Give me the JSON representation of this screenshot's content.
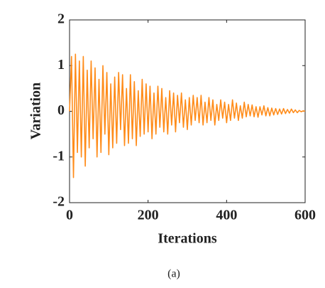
{
  "chart_data": {
    "type": "line",
    "xlabel": "Iterations",
    "ylabel": "Variation",
    "caption": "(a)",
    "color": "#ff8c1a",
    "x": [
      0,
      5,
      10,
      15,
      20,
      25,
      30,
      35,
      40,
      45,
      50,
      55,
      60,
      65,
      70,
      75,
      80,
      85,
      90,
      95,
      100,
      105,
      110,
      115,
      120,
      125,
      130,
      135,
      140,
      145,
      150,
      155,
      160,
      165,
      170,
      175,
      180,
      185,
      190,
      195,
      200,
      205,
      210,
      215,
      220,
      225,
      230,
      235,
      240,
      245,
      250,
      255,
      260,
      265,
      270,
      275,
      280,
      285,
      290,
      295,
      300,
      305,
      310,
      315,
      320,
      325,
      330,
      335,
      340,
      345,
      350,
      355,
      360,
      365,
      370,
      375,
      380,
      385,
      390,
      395,
      400,
      405,
      410,
      415,
      420,
      425,
      430,
      435,
      440,
      445,
      450,
      455,
      460,
      465,
      470,
      475,
      480,
      485,
      490,
      495,
      500,
      505,
      510,
      515,
      520,
      525,
      530,
      535,
      540,
      545,
      550,
      555,
      560,
      565,
      570,
      575,
      580,
      585,
      590,
      595,
      600
    ],
    "values": [
      0,
      1.2,
      -1.45,
      1.25,
      -0.9,
      1.1,
      -1.0,
      1.2,
      -1.2,
      0.9,
      -0.8,
      1.1,
      -0.6,
      0.95,
      -1.0,
      0.7,
      -0.9,
      1.0,
      -0.5,
      0.85,
      -0.95,
      0.6,
      -0.8,
      0.75,
      -0.7,
      0.85,
      -0.4,
      0.8,
      -0.75,
      0.5,
      -0.7,
      0.8,
      -0.6,
      0.65,
      -0.75,
      0.45,
      -0.55,
      0.7,
      -0.5,
      0.6,
      -0.45,
      0.55,
      -0.6,
      0.4,
      -0.5,
      0.55,
      -0.35,
      0.5,
      -0.45,
      0.3,
      -0.5,
      0.45,
      -0.3,
      0.4,
      -0.45,
      0.35,
      -0.25,
      0.4,
      -0.35,
      0.25,
      -0.4,
      0.3,
      -0.3,
      0.35,
      -0.2,
      0.3,
      -0.25,
      0.35,
      -0.3,
      0.2,
      -0.25,
      0.3,
      -0.2,
      0.25,
      -0.3,
      0.15,
      -0.2,
      0.25,
      -0.15,
      0.2,
      -0.25,
      0.15,
      -0.2,
      0.25,
      -0.15,
      0.18,
      -0.2,
      0.12,
      -0.15,
      0.2,
      -0.12,
      0.15,
      -0.1,
      0.14,
      -0.12,
      0.1,
      -0.13,
      0.1,
      -0.08,
      0.12,
      -0.1,
      0.08,
      -0.1,
      0.07,
      -0.08,
      0.06,
      -0.07,
      0.05,
      -0.06,
      0.06,
      -0.05,
      0.04,
      -0.04,
      0.05,
      -0.03,
      0.03,
      -0.03,
      0.02,
      -0.01,
      0.01,
      0
    ],
    "xlim": [
      0,
      600
    ],
    "xticks": [
      0,
      200,
      400,
      600
    ],
    "ylim": [
      -2,
      2
    ],
    "yticks": [
      -2,
      -1,
      0,
      1,
      2
    ]
  }
}
